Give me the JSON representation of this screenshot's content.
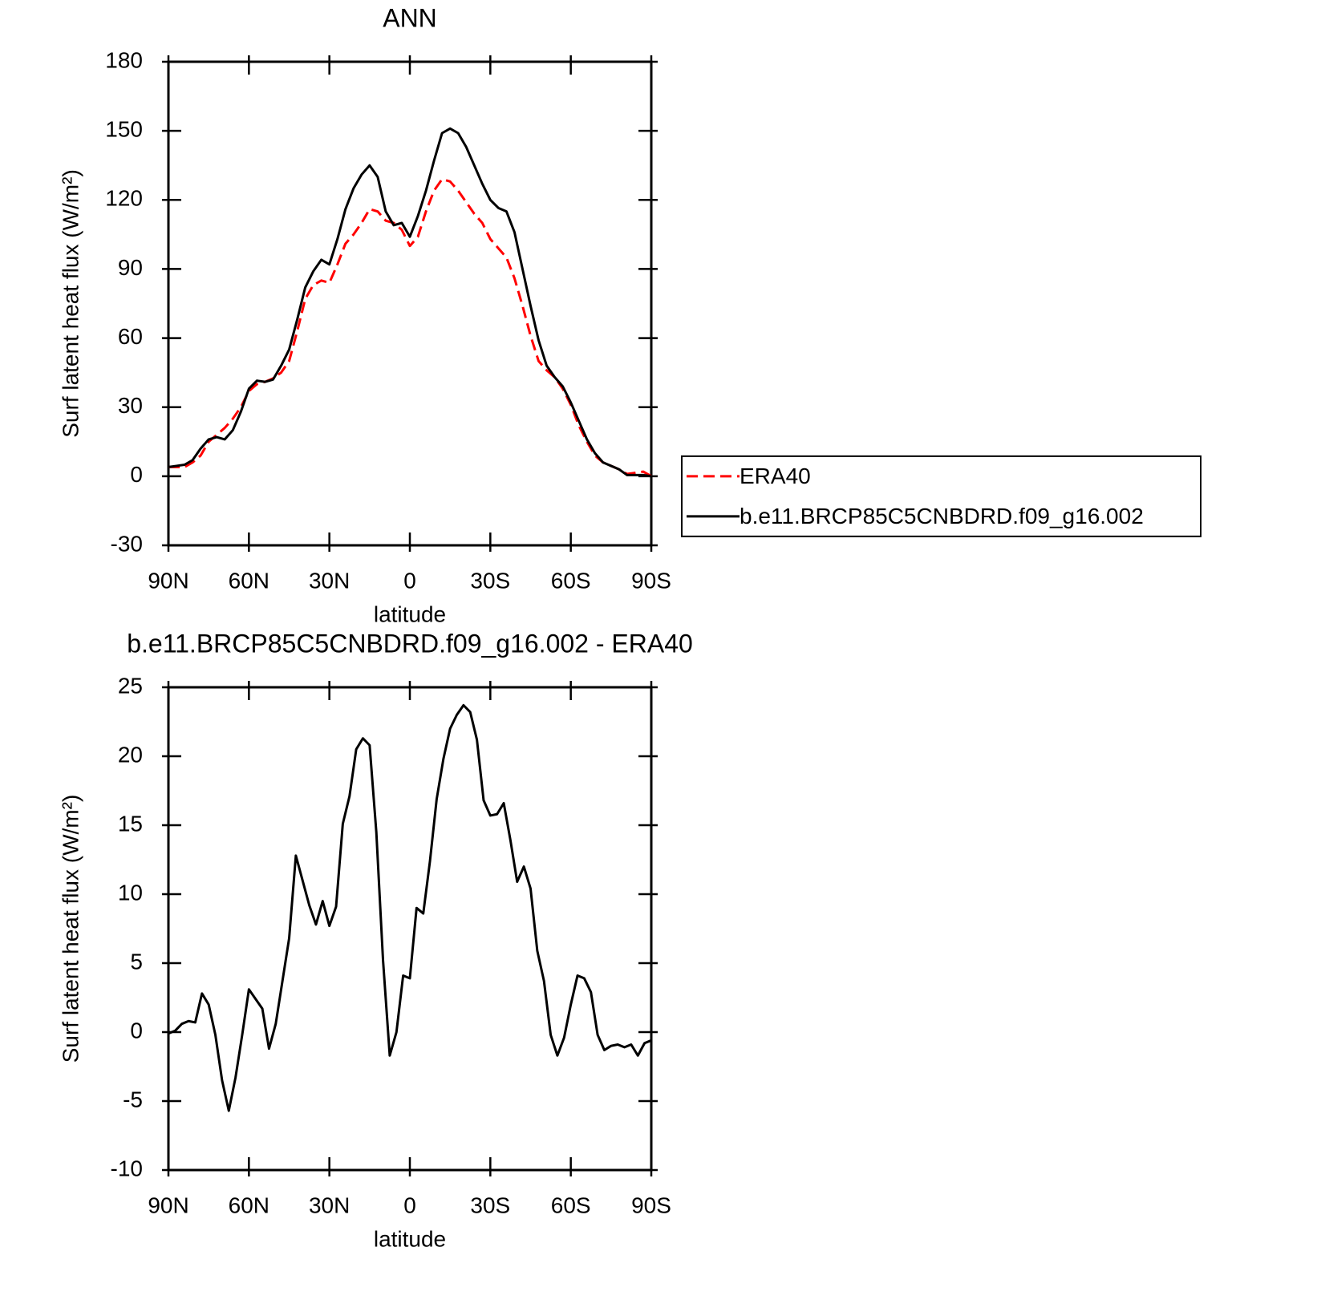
{
  "chart_data": [
    {
      "type": "line",
      "title": "ANN",
      "x_label": "latitude",
      "y_label": "Surf latent heat flux (W/m²)",
      "x": [
        90,
        87,
        84,
        81,
        78,
        75,
        72,
        69,
        66,
        63,
        60,
        57,
        54,
        51,
        48,
        45,
        42,
        39,
        36,
        33,
        30,
        27,
        24,
        21,
        18,
        15,
        12,
        9,
        6,
        3,
        0,
        -3,
        -6,
        -9,
        -12,
        -15,
        -18,
        -21,
        -24,
        -27,
        -30,
        -33,
        -36,
        -39,
        -42,
        -45,
        -48,
        -51,
        -54,
        -57,
        -60,
        -63,
        -66,
        -69,
        -72,
        -75,
        -78,
        -81,
        -84,
        -87,
        -90
      ],
      "series": [
        {
          "name": "ERA40",
          "color": "#ff0000",
          "dashed": true,
          "values": [
            4,
            4,
            4,
            6,
            9,
            15,
            18,
            21,
            25,
            30,
            37,
            40,
            41,
            42.5,
            45,
            50,
            63,
            77,
            83,
            85,
            84,
            92,
            101,
            105,
            110,
            116,
            115,
            111,
            110,
            107,
            100,
            104,
            115,
            124,
            129,
            128,
            124,
            119,
            114,
            110,
            103,
            99,
            95,
            86,
            74,
            61,
            50,
            46,
            43,
            38,
            31,
            22,
            15,
            9,
            6,
            4.5,
            3,
            1,
            1.5,
            2,
            0
          ]
        },
        {
          "name": "b.e11.BRCP85C5CNBDRD.f09_g16.002",
          "color": "#000000",
          "dashed": false,
          "values": [
            4,
            4.5,
            5,
            7,
            12,
            16,
            17,
            16,
            20,
            28,
            38,
            41.5,
            41,
            42,
            48,
            55,
            68,
            82,
            89,
            94,
            92,
            103,
            116,
            125,
            131,
            135,
            130,
            115,
            109,
            110,
            104,
            113,
            124,
            137,
            149,
            151,
            149,
            143,
            135,
            127,
            120,
            116.5,
            115,
            106,
            90,
            74,
            59,
            48,
            43,
            39,
            32,
            24,
            16,
            10,
            6,
            4.5,
            3,
            0.5,
            0.5,
            0.5,
            0
          ]
        }
      ],
      "xlim": [
        90,
        -90
      ],
      "xticks": [
        {
          "value": 90,
          "label": "90N"
        },
        {
          "value": 60,
          "label": "60N"
        },
        {
          "value": 30,
          "label": "30N"
        },
        0,
        {
          "value": -30,
          "label": "30S"
        },
        {
          "value": -60,
          "label": "60S"
        },
        {
          "value": -90,
          "label": "90S"
        }
      ],
      "ylim": [
        -30,
        180
      ],
      "yticks": [
        -30,
        0,
        30,
        60,
        90,
        120,
        150,
        180
      ],
      "legend": "right"
    },
    {
      "type": "line",
      "title": "b.e11.BRCP85C5CNBDRD.f09_g16.002 - ERA40",
      "x_label": "latitude",
      "y_label": "Surf latent heat flux (W/m²)",
      "x": [
        90,
        87.5,
        85,
        82.5,
        80,
        77.5,
        75,
        72.5,
        70,
        67.5,
        65,
        62.5,
        60,
        57.5,
        55,
        52.5,
        50,
        47.5,
        45,
        42.5,
        40,
        37.5,
        35,
        32.5,
        30,
        27.5,
        25,
        22.5,
        20,
        17.5,
        15,
        12.5,
        10,
        7.5,
        5,
        2.5,
        0,
        -2.5,
        -5,
        -7.5,
        -10,
        -12.5,
        -15,
        -17.5,
        -20,
        -22.5,
        -25,
        -27.5,
        -30,
        -32.5,
        -35,
        -37.5,
        -40,
        -42.5,
        -45,
        -47.5,
        -50,
        -52.5,
        -55,
        -57.5,
        -60,
        -62.5,
        -65,
        -67.5,
        -70,
        -72.5,
        -75,
        -77.5,
        -80,
        -82.5,
        -85,
        -87.5,
        -90
      ],
      "series": [
        {
          "color": "#000000",
          "dashed": false,
          "values": [
            -0.1,
            0.1,
            0.6,
            0.8,
            0.7,
            2.8,
            2.0,
            -0.2,
            -3.5,
            -5.7,
            -3.3,
            -0.2,
            3.1,
            2.4,
            1.7,
            -1.2,
            0.6,
            3.7,
            6.8,
            12.8,
            11.0,
            9.2,
            7.8,
            9.5,
            7.7,
            9.1,
            15.1,
            17.1,
            20.5,
            21.3,
            20.8,
            14.5,
            5.2,
            -1.7,
            0.0,
            4.1,
            3.9,
            9.0,
            8.6,
            12.4,
            16.9,
            19.8,
            22.0,
            23.0,
            23.7,
            23.2,
            21.2,
            16.8,
            15.7,
            15.8,
            16.6,
            13.9,
            10.9,
            12.0,
            10.4,
            5.9,
            3.7,
            -0.2,
            -1.7,
            -0.4,
            2.0,
            4.1,
            3.9,
            2.9,
            -0.2,
            -1.3,
            -1.0,
            -0.9,
            -1.1,
            -0.9,
            -1.7,
            -0.8,
            -0.6
          ]
        }
      ],
      "xlim": [
        90,
        -90
      ],
      "xticks": [
        {
          "value": 90,
          "label": "90N"
        },
        {
          "value": 60,
          "label": "60N"
        },
        {
          "value": 30,
          "label": "30N"
        },
        0,
        {
          "value": -30,
          "label": "30S"
        },
        {
          "value": -60,
          "label": "60S"
        },
        {
          "value": -90,
          "label": "90S"
        }
      ],
      "ylim": [
        -10,
        25
      ],
      "yticks": [
        -10,
        -5,
        0,
        5,
        10,
        15,
        20,
        25
      ]
    }
  ]
}
